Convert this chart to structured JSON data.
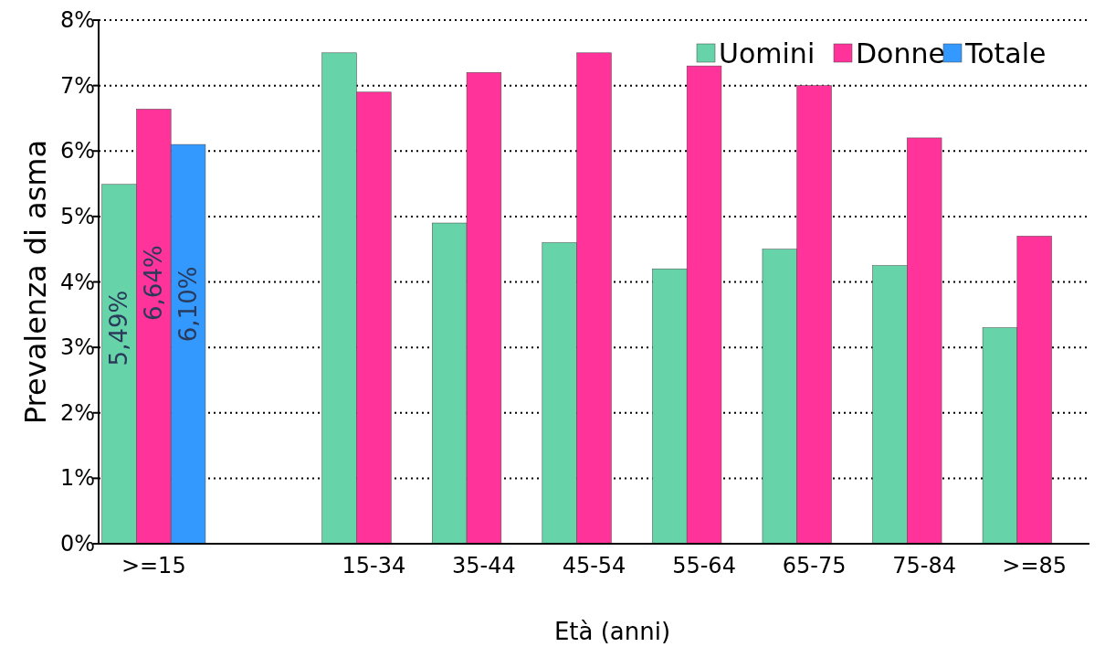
{
  "chart_data": {
    "type": "bar",
    "xlabel": "Età (anni)",
    "ylabel": "Prevalenza di asma",
    "categories": [
      ">=15",
      null,
      "15-34",
      "35-44",
      "45-54",
      "55-64",
      "65-75",
      "75-84",
      ">=85"
    ],
    "series": [
      {
        "name": "Uomini",
        "color": "#66d4a8",
        "values": [
          5.49,
          null,
          7.5,
          4.9,
          4.6,
          4.2,
          4.5,
          4.25,
          3.3
        ],
        "value_labels": [
          "5,49%",
          null,
          null,
          null,
          null,
          null,
          null,
          null,
          null
        ]
      },
      {
        "name": "Donne",
        "color": "#ff3399",
        "values": [
          6.64,
          null,
          6.9,
          7.2,
          7.5,
          7.3,
          7.0,
          6.2,
          4.7
        ],
        "value_labels": [
          "6,64%",
          null,
          null,
          null,
          null,
          null,
          null,
          null,
          null
        ]
      },
      {
        "name": "Totale",
        "color": "#3399ff",
        "values": [
          6.1,
          null,
          null,
          null,
          null,
          null,
          null,
          null,
          null
        ],
        "value_labels": [
          "6,10%",
          null,
          null,
          null,
          null,
          null,
          null,
          null,
          null
        ]
      }
    ],
    "ylim": [
      0,
      8
    ],
    "yticks": [
      {
        "value": 0,
        "label": "0%"
      },
      {
        "value": 1,
        "label": "1%"
      },
      {
        "value": 2,
        "label": "2%"
      },
      {
        "value": 3,
        "label": "3%"
      },
      {
        "value": 4,
        "label": "4%"
      },
      {
        "value": 5,
        "label": "5%"
      },
      {
        "value": 6,
        "label": "6%"
      },
      {
        "value": 7,
        "label": "7%"
      },
      {
        "value": 8,
        "label": "8%"
      }
    ],
    "grid": "y",
    "legend": "top right"
  }
}
